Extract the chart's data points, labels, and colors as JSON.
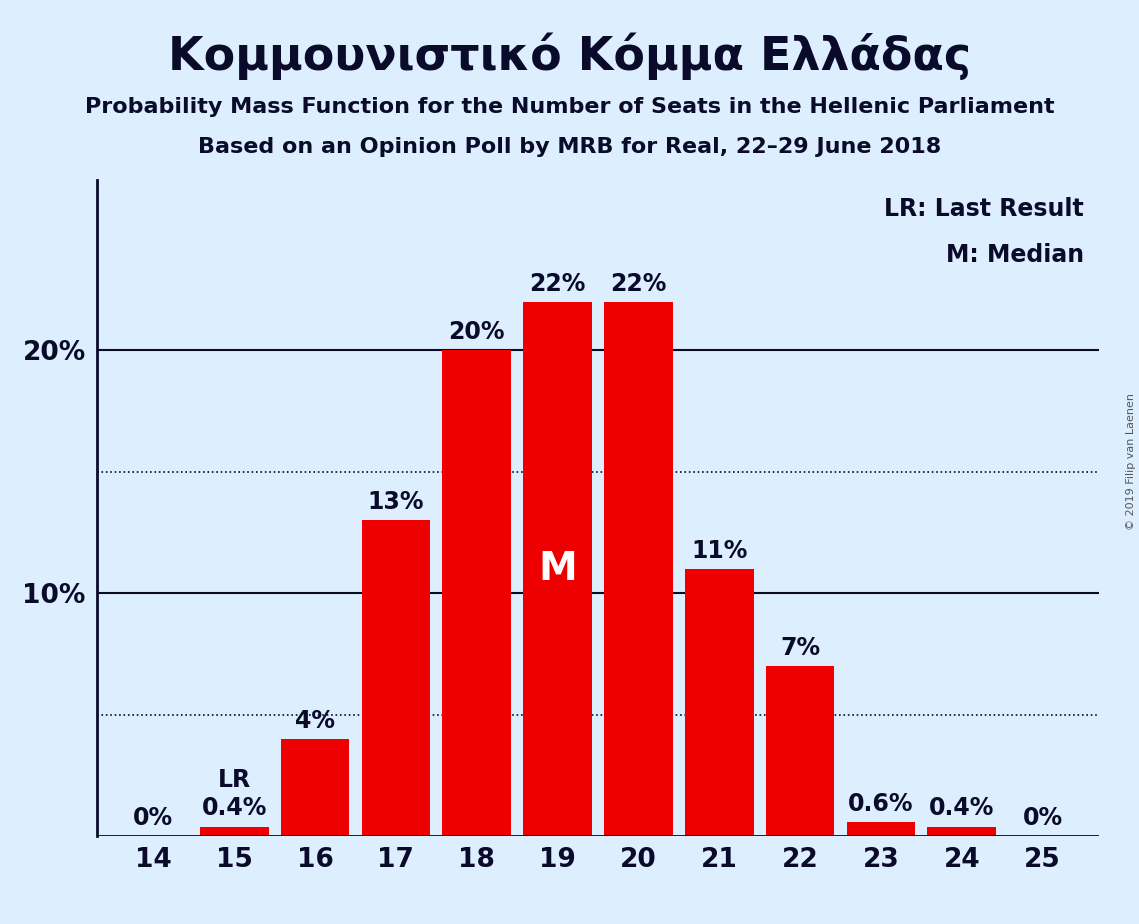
{
  "title": "Κομμουνιστικό Κόμμα Ελλάδας",
  "subtitle1": "Probability Mass Function for the Number of Seats in the Hellenic Parliament",
  "subtitle2": "Based on an Opinion Poll by MRB for Real, 22–29 June 2018",
  "copyright": "© 2019 Filip van Laenen",
  "seats": [
    14,
    15,
    16,
    17,
    18,
    19,
    20,
    21,
    22,
    23,
    24,
    25
  ],
  "probabilities": [
    0.0,
    0.4,
    4.0,
    13.0,
    20.0,
    22.0,
    22.0,
    11.0,
    7.0,
    0.6,
    0.4,
    0.0
  ],
  "bar_color": "#ee0000",
  "background_color": "#ddeeff",
  "text_color": "#0a0a2a",
  "bar_label_color_outside": "#0a0a2a",
  "bar_label_color_inside": "#ffffff",
  "median_seat": 19,
  "last_result_seat": 15,
  "legend_lr": "LR: Last Result",
  "legend_m": "M: Median",
  "solid_lines": [
    10.0,
    20.0
  ],
  "dotted_lines": [
    5.0,
    15.0
  ],
  "ylim": [
    0,
    27
  ],
  "bar_label_fontsize": 17,
  "tick_fontsize": 19,
  "legend_fontsize": 17,
  "copyright_fontsize": 8
}
